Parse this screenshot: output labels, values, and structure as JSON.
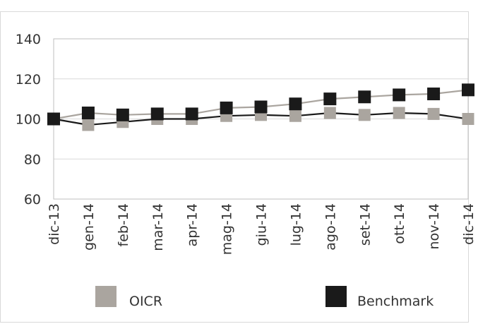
{
  "chart_data": {
    "type": "line",
    "categories": [
      "dic-13",
      "gen-14",
      "feb-14",
      "mar-14",
      "apr-14",
      "mag-14",
      "giu-14",
      "lug-14",
      "ago-14",
      "set-14",
      "ott-14",
      "nov-14",
      "dic-14"
    ],
    "series": [
      {
        "name": "OICR",
        "color": "#aaa59f",
        "line_values": [
          100,
          103,
          102,
          102.5,
          102.5,
          105.5,
          106,
          107.5,
          110,
          111,
          112,
          112.5,
          114.5
        ],
        "marker_values": [
          100,
          97,
          98.5,
          100,
          100,
          101.5,
          102,
          101.5,
          103,
          102,
          103,
          102.5,
          100
        ]
      },
      {
        "name": "Benchmark",
        "color": "#1a1a1a",
        "line_values": [
          100,
          97,
          98.5,
          100,
          100,
          101.5,
          102,
          101.5,
          103,
          102,
          103,
          102.5,
          100
        ],
        "marker_values": [
          100,
          103,
          102,
          102.5,
          102.5,
          105.5,
          106,
          107.5,
          110,
          111,
          112,
          112.5,
          114.5
        ]
      }
    ],
    "ylim": [
      60,
      140
    ],
    "yticks": [
      "60",
      "80",
      "100",
      "120",
      "140"
    ],
    "grid": true,
    "legend": "bottom"
  }
}
